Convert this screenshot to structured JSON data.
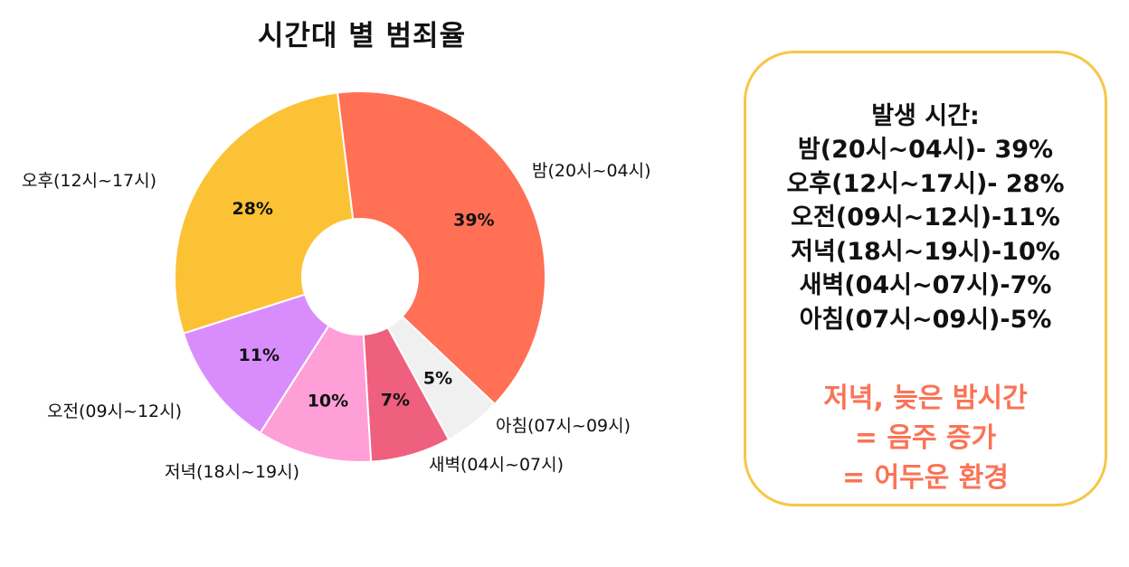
{
  "chart_data": {
    "type": "pie",
    "title": "시간대 별 범죄율",
    "slices": [
      {
        "label": "밤(20시~04시)",
        "value": 39,
        "value_label": "39%",
        "color": "#ff7055"
      },
      {
        "label": "아침(07시~09시)",
        "value": 5,
        "value_label": "5%",
        "color": "#f0f0f0"
      },
      {
        "label": "새벽(04시~07시)",
        "value": 7,
        "value_label": "7%",
        "color": "#ef5f7e"
      },
      {
        "label": "저녁(18시~19시)",
        "value": 10,
        "value_label": "10%",
        "color": "#ff9fd8"
      },
      {
        "label": "오전(09시~12시)",
        "value": 11,
        "value_label": "11%",
        "color": "#d98dfc"
      },
      {
        "label": "오후(12시~17시)",
        "value": 28,
        "value_label": "28%",
        "color": "#fcc236"
      }
    ]
  },
  "info_box": {
    "heading": "발생 시간:",
    "lines": [
      "밤(20시~04시)- 39%",
      "오후(12시~17시)- 28%",
      "오전(09시~12시)-11%",
      "저녁(18시~19시)-10%",
      "새벽(04시~07시)-7%",
      "아침(07시~09시)-5%"
    ],
    "note_lines": [
      "저녁, 늦은 밤시간",
      "= 음주 증가",
      "= 어두운 환경"
    ],
    "note_color": "#fa7356",
    "border_color": "#f7c649"
  }
}
